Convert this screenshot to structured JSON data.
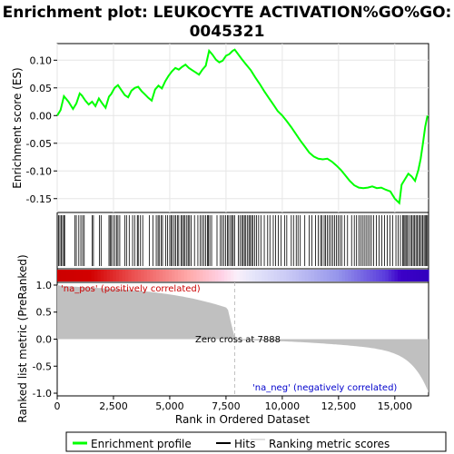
{
  "chart_data": {
    "type": "line",
    "title": "Enrichment plot: LEUKOCYTE ACTIVATION%GO%GO:\n0045321",
    "title_line1": "Enrichment plot: LEUKOCYTE ACTIVATION%GO%GO:",
    "title_line2": "0045321",
    "xlabel": "Rank in Ordered Dataset",
    "ylabel_top": "Enrichment score (ES)",
    "ylabel_bottom": "Ranked list metric (PreRanked)",
    "xlim": [
      0,
      16500
    ],
    "es_ylim": [
      -0.175,
      0.13
    ],
    "metric_ylim": [
      -1.05,
      1.05
    ],
    "x_ticks": [
      0,
      2500,
      5000,
      7500,
      10000,
      12500,
      15000
    ],
    "x_tick_labels": [
      "0",
      "2,500",
      "5,000",
      "7,500",
      "10,000",
      "12,500",
      "15,000"
    ],
    "es_ticks": [
      0.1,
      0.05,
      0.0,
      -0.05,
      -0.1,
      -0.15
    ],
    "es_tick_labels": [
      "0.10",
      "0.05",
      "0.00",
      "-0.05",
      "-0.10",
      "-0.15"
    ],
    "metric_ticks": [
      1.0,
      0.5,
      0.0,
      -0.5,
      -1.0
    ],
    "metric_tick_labels": [
      "1.0",
      "0.5",
      "0.0",
      "-0.5",
      "-1.0"
    ],
    "zero_cross_rank": 7888,
    "zero_cross_label": "Zero cross at 7888",
    "pos_label": "'na_pos' (positively correlated)",
    "neg_label": "'na_neg' (negatively correlated)",
    "enrichment_profile": {
      "x": [
        0,
        150,
        300,
        500,
        700,
        850,
        1000,
        1100,
        1250,
        1400,
        1550,
        1700,
        1850,
        2000,
        2150,
        2300,
        2400,
        2550,
        2700,
        2850,
        3000,
        3150,
        3300,
        3450,
        3600,
        3750,
        3900,
        4050,
        4200,
        4350,
        4500,
        4650,
        4800,
        4950,
        5100,
        5250,
        5400,
        5550,
        5700,
        5850,
        6000,
        6150,
        6300,
        6450,
        6600,
        6750,
        6900,
        7050,
        7200,
        7350,
        7500,
        7650,
        7800,
        7888,
        8000,
        8200,
        8400,
        8600,
        8800,
        9000,
        9200,
        9400,
        9600,
        9800,
        10000,
        10200,
        10400,
        10600,
        10800,
        11000,
        11200,
        11400,
        11600,
        11800,
        12000,
        12200,
        12400,
        12600,
        12800,
        13000,
        13200,
        13400,
        13600,
        13800,
        14000,
        14200,
        14400,
        14600,
        14800,
        15000,
        15200,
        15300,
        15450,
        15600,
        15750,
        15900,
        16050,
        16150,
        16250,
        16350,
        16450
      ],
      "y": [
        0.0,
        0.01,
        0.035,
        0.025,
        0.012,
        0.022,
        0.04,
        0.036,
        0.027,
        0.02,
        0.025,
        0.017,
        0.031,
        0.022,
        0.014,
        0.034,
        0.039,
        0.05,
        0.055,
        0.046,
        0.037,
        0.033,
        0.045,
        0.05,
        0.052,
        0.044,
        0.038,
        0.032,
        0.027,
        0.047,
        0.054,
        0.049,
        0.062,
        0.072,
        0.08,
        0.086,
        0.083,
        0.088,
        0.092,
        0.086,
        0.082,
        0.078,
        0.074,
        0.083,
        0.09,
        0.117,
        0.11,
        0.101,
        0.096,
        0.099,
        0.108,
        0.111,
        0.117,
        0.119,
        0.113,
        0.102,
        0.092,
        0.082,
        0.069,
        0.057,
        0.044,
        0.032,
        0.02,
        0.008,
        0.0,
        -0.01,
        -0.021,
        -0.033,
        -0.045,
        -0.056,
        -0.067,
        -0.074,
        -0.078,
        -0.079,
        -0.078,
        -0.083,
        -0.09,
        -0.098,
        -0.108,
        -0.118,
        -0.126,
        -0.13,
        -0.131,
        -0.13,
        -0.128,
        -0.131,
        -0.13,
        -0.134,
        -0.137,
        -0.15,
        -0.158,
        -0.125,
        -0.115,
        -0.105,
        -0.11,
        -0.118,
        -0.098,
        -0.078,
        -0.05,
        -0.02,
        0.0
      ]
    },
    "hits": [
      60,
      120,
      180,
      240,
      300,
      330,
      780,
      850,
      960,
      1050,
      1130,
      1200,
      1550,
      1610,
      1880,
      1950,
      2300,
      2350,
      2400,
      2480,
      2560,
      2640,
      2700,
      2780,
      3010,
      3080,
      3200,
      3350,
      3440,
      3560,
      3600,
      3700,
      3800,
      4100,
      4250,
      4400,
      4480,
      4530,
      4620,
      4680,
      4820,
      4900,
      5000,
      5060,
      5120,
      5200,
      5260,
      5340,
      5400,
      5500,
      5560,
      5620,
      5680,
      5760,
      5820,
      5880,
      5950,
      6100,
      6250,
      6350,
      6440,
      6520,
      6600,
      6680,
      6720,
      6780,
      6860,
      7100,
      7250,
      7320,
      7400,
      7480,
      7560,
      7620,
      7700,
      7760,
      7820,
      7880,
      8050,
      8120,
      8200,
      8260,
      8320,
      8380,
      8460,
      8520,
      8580,
      8640,
      8700,
      8780,
      8860,
      8950,
      9050,
      9200,
      9350,
      9450,
      9600,
      9700,
      9820,
      9950,
      10100,
      10200,
      10400,
      10500,
      10620,
      10700,
      10800,
      11000,
      11200,
      11320,
      11480,
      11600,
      11700,
      11760,
      11860,
      11920,
      12000,
      12080,
      12160,
      12240,
      12320,
      12400,
      12480,
      12560,
      12640,
      12760,
      12900,
      13080,
      13200,
      13300,
      13400,
      13480,
      13560,
      13640,
      13720,
      13800,
      13880,
      13960,
      14060,
      14180,
      14300,
      14420,
      14540,
      14660,
      14780,
      14900,
      15050,
      15150,
      15250,
      15350,
      15400,
      15450,
      15500,
      15560,
      15620,
      15700,
      15760,
      15820,
      15880,
      15940,
      16000,
      16060,
      16120,
      16180,
      16240,
      16300,
      16350,
      16400,
      16450
    ]
  },
  "legend": {
    "enrichment_label": "Enrichment profile",
    "hits_label": "Hits",
    "metric_label": "Ranking metric scores",
    "enrichment_color": "#00ff00",
    "hits_color": "#000000",
    "metric_color": "#c0c0c0"
  },
  "colors": {
    "pos_text": "#cc0000",
    "neg_text": "#0000cc",
    "zero_line": "#c0c0c0"
  }
}
